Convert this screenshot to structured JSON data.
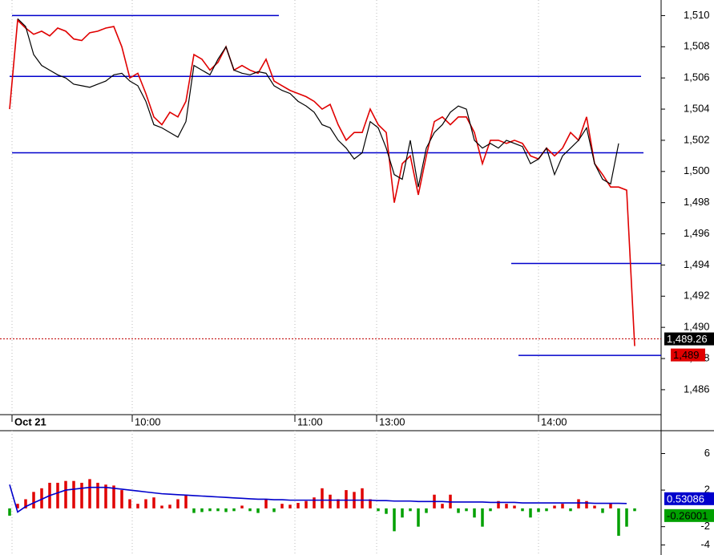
{
  "chart_data": [
    {
      "type": "line",
      "x": [
        0,
        1,
        2,
        3,
        4,
        5,
        6,
        7,
        8,
        9,
        10,
        11,
        12,
        13,
        14,
        15,
        16,
        17,
        18,
        19,
        20,
        21,
        22,
        23,
        24,
        25,
        26,
        27,
        28,
        29,
        30,
        31,
        32,
        33,
        34,
        35,
        36,
        37,
        38,
        39,
        40,
        41,
        42,
        43,
        44,
        45,
        46,
        47,
        48,
        49,
        50,
        51,
        52,
        53,
        54,
        55,
        56,
        57,
        58,
        59,
        60,
        61,
        62,
        63,
        64,
        65,
        66,
        67,
        68,
        69,
        70,
        71,
        72,
        73,
        74,
        75,
        76,
        77,
        78
      ],
      "series": [
        {
          "color": "#e00000",
          "values": [
            1504,
            1509.7,
            1509.2,
            1508.8,
            1509.0,
            1508.7,
            1509.2,
            1509.0,
            1508.5,
            1508.4,
            1508.9,
            1509.0,
            1509.2,
            1509.3,
            1508.0,
            1506.0,
            1506.3,
            1505.0,
            1503.5,
            1503.0,
            1503.8,
            1503.5,
            1504.5,
            1507.5,
            1507.2,
            1506.5,
            1507.0,
            1508.0,
            1506.5,
            1506.8,
            1506.5,
            1506.3,
            1507.2,
            1505.8,
            1505.5,
            1505.2,
            1505.0,
            1504.8,
            1504.5,
            1504.0,
            1504.3,
            1503.0,
            1502.0,
            1502.5,
            1502.5,
            1504.0,
            1503.0,
            1502.5,
            1498.0,
            1500.5,
            1501.0,
            1498.5,
            1501.0,
            1503.2,
            1503.5,
            1503.0,
            1503.5,
            1503.5,
            1502.5,
            1500.5,
            1502.0,
            1502.0,
            1501.8,
            1502.0,
            1501.8,
            1501.0,
            1500.8,
            1501.5,
            1501.0,
            1501.5,
            1502.5,
            1502.0,
            1503.5,
            1500.5,
            1499.8,
            1499.0,
            1499.0,
            1498.8,
            1488.8
          ]
        },
        {
          "color": "#000000",
          "values": [
            null,
            1509.8,
            1509.3,
            1507.5,
            1506.8,
            1506.5,
            1506.2,
            1506.0,
            1505.6,
            1505.5,
            1505.4,
            1505.6,
            1505.8,
            1506.2,
            1506.3,
            1505.8,
            1505.5,
            1504.5,
            1503.0,
            1502.8,
            1502.5,
            1502.2,
            1503.2,
            1506.8,
            1506.5,
            1506.2,
            1507.2,
            1508.0,
            1506.5,
            1506.3,
            1506.2,
            1506.4,
            1506.3,
            1505.5,
            1505.2,
            1505.0,
            1504.5,
            1504.2,
            1503.8,
            1503.0,
            1502.8,
            1502.0,
            1501.5,
            1500.8,
            1501.2,
            1503.2,
            1502.8,
            1501.5,
            1499.8,
            1499.5,
            1502.0,
            1499.0,
            1501.5,
            1502.5,
            1503.0,
            1503.8,
            1504.2,
            1504.0,
            1502.0,
            1501.5,
            1501.8,
            1501.5,
            1502.0,
            1501.8,
            1501.6,
            1500.5,
            1500.8,
            1501.5,
            1499.8,
            1501.0,
            1501.5,
            1502.0,
            1502.8,
            1500.5,
            1499.5,
            1499.2,
            1501.8,
            null,
            null
          ]
        }
      ],
      "levels": [
        {
          "value": 1510,
          "from": 0.3,
          "to": 33.6
        },
        {
          "value": 1506.1,
          "from": 0,
          "to": 78.8
        },
        {
          "value": 1501.2,
          "from": 0.3,
          "to": 79.1
        },
        {
          "value": 1494.1,
          "from": 62.6,
          "to": 81.3
        },
        {
          "value": 1488.2,
          "from": 63.5,
          "to": 81.3
        }
      ],
      "level_color": "#0000cc",
      "last_label": {
        "value": 1489.26,
        "label": "1,489.26"
      },
      "close_label": {
        "value": 1489,
        "label": "1,489"
      },
      "xlim": [
        -1.2,
        81.3
      ],
      "xticks": [
        {
          "value": 0.3,
          "label": "Oct 21"
        },
        {
          "value": 15.3,
          "label": "10:00"
        },
        {
          "value": 35.6,
          "label": "11:00"
        },
        {
          "value": 45.8,
          "label": "13:00"
        },
        {
          "value": 66,
          "label": "14:00"
        }
      ],
      "ylim": [
        1484.4,
        1511
      ],
      "yticks": [
        {
          "value": 1510,
          "label": "1,510"
        },
        {
          "value": 1508,
          "label": "1,508"
        },
        {
          "value": 1506,
          "label": "1,506"
        },
        {
          "value": 1504,
          "label": "1,504"
        },
        {
          "value": 1502,
          "label": "1,502"
        },
        {
          "value": 1500,
          "label": "1,500"
        },
        {
          "value": 1498,
          "label": "1,498"
        },
        {
          "value": 1496,
          "label": "1,496"
        },
        {
          "value": 1494,
          "label": "1,494"
        },
        {
          "value": 1492,
          "label": "1,492"
        },
        {
          "value": 1490,
          "label": "1,490"
        },
        {
          "value": 1488,
          "label": "1,488"
        },
        {
          "value": 1486,
          "label": "1,486"
        }
      ],
      "grid": "x"
    },
    {
      "type": "bar",
      "x": [
        0,
        1,
        2,
        3,
        4,
        5,
        6,
        7,
        8,
        9,
        10,
        11,
        12,
        13,
        14,
        15,
        16,
        17,
        18,
        19,
        20,
        21,
        22,
        23,
        24,
        25,
        26,
        27,
        28,
        29,
        30,
        31,
        32,
        33,
        34,
        35,
        36,
        37,
        38,
        39,
        40,
        41,
        42,
        43,
        44,
        45,
        46,
        47,
        48,
        49,
        50,
        51,
        52,
        53,
        54,
        55,
        56,
        57,
        58,
        59,
        60,
        61,
        62,
        63,
        64,
        65,
        66,
        67,
        68,
        69,
        70,
        71,
        72,
        73,
        74,
        75,
        76,
        77,
        78
      ],
      "values": [
        -0.8,
        0.5,
        1.0,
        1.8,
        2.2,
        2.8,
        2.8,
        3.0,
        3.0,
        2.8,
        3.2,
        2.8,
        2.6,
        2.5,
        2.0,
        1.0,
        0.5,
        1.0,
        1.2,
        0.3,
        0.4,
        1.0,
        1.5,
        -0.5,
        -0.4,
        -0.3,
        -0.3,
        -0.4,
        -0.3,
        0.3,
        -0.3,
        -0.5,
        1.0,
        -0.4,
        0.5,
        0.4,
        0.6,
        0.8,
        1.2,
        2.2,
        1.5,
        1.0,
        2.0,
        1.8,
        2.2,
        1.0,
        -0.3,
        -0.6,
        -2.5,
        -1.0,
        -0.3,
        -2.0,
        -0.5,
        1.5,
        0.5,
        1.5,
        -0.5,
        -0.3,
        -1.0,
        -2.0,
        -0.3,
        0.8,
        0.5,
        0.3,
        -0.3,
        -1.0,
        -0.4,
        -0.3,
        0.3,
        0.5,
        -0.3,
        1.0,
        0.8,
        0.3,
        -0.5,
        0.5,
        -3.0,
        -2.0,
        -0.3
      ],
      "up_color": "#e00000",
      "down_color": "#00a000",
      "line": {
        "color": "#0000cc",
        "values": [
          2.6,
          -0.4,
          0.2,
          0.6,
          1.0,
          1.4,
          1.7,
          2.0,
          2.1,
          2.2,
          2.3,
          2.3,
          2.3,
          2.2,
          2.1,
          2.0,
          1.9,
          1.8,
          1.7,
          1.6,
          1.55,
          1.5,
          1.45,
          1.4,
          1.35,
          1.3,
          1.25,
          1.2,
          1.15,
          1.1,
          1.05,
          1.0,
          1.0,
          0.95,
          0.95,
          0.9,
          0.9,
          0.9,
          0.9,
          0.9,
          0.9,
          0.9,
          0.9,
          0.9,
          0.9,
          0.9,
          0.85,
          0.85,
          0.8,
          0.8,
          0.8,
          0.75,
          0.75,
          0.75,
          0.75,
          0.7,
          0.7,
          0.7,
          0.7,
          0.7,
          0.65,
          0.65,
          0.65,
          0.65,
          0.6,
          0.6,
          0.6,
          0.6,
          0.6,
          0.6,
          0.6,
          0.6,
          0.6,
          0.55,
          0.55,
          0.55,
          0.55,
          0.53,
          null
        ]
      },
      "line_label": {
        "value": 0.53086,
        "label": "0.53086",
        "color": "#0000cc"
      },
      "bar_label": {
        "value": -0.26001,
        "label": "-0.26001",
        "color": "#00a000"
      },
      "xlim": [
        -1.2,
        81.3
      ],
      "xticks": [
        0.3,
        15.3,
        35.6,
        45.8,
        66
      ],
      "ylim": [
        -5.1,
        8.5
      ],
      "yticks": [
        6,
        2,
        -2,
        -4
      ],
      "grid": "x"
    }
  ]
}
